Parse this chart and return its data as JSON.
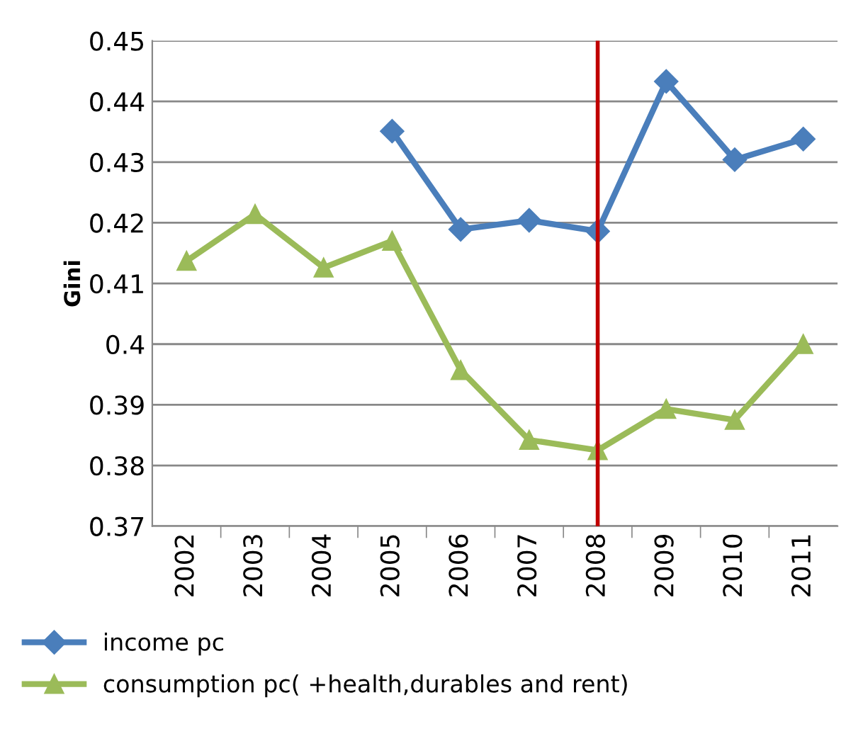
{
  "chart_data": {
    "type": "line",
    "ylabel": "Gini",
    "categories": [
      "2002",
      "2003",
      "2004",
      "2005",
      "2006",
      "2007",
      "2008",
      "2009",
      "2010",
      "2011"
    ],
    "series": [
      {
        "name": "income pc",
        "color": "#4a7ebb",
        "marker": "diamond",
        "values": [
          null,
          null,
          null,
          0.4351,
          0.4189,
          0.4204,
          0.4186,
          0.4433,
          0.4304,
          0.4338
        ]
      },
      {
        "name": "consumption pc( +health,durables and rent)",
        "color": "#9bbb59",
        "marker": "triangle",
        "values": [
          0.4137,
          0.4214,
          0.4126,
          0.417,
          0.3957,
          0.3842,
          0.3825,
          0.3893,
          0.3875,
          0.4
        ]
      }
    ],
    "ylim": [
      0.37,
      0.45
    ],
    "yticks": [
      0.37,
      0.38,
      0.39,
      0.4,
      0.41,
      0.42,
      0.43,
      0.44,
      0.45
    ],
    "ref_lines": [
      {
        "axis": "x",
        "value": "2008",
        "color": "#c00000"
      }
    ],
    "grid": "y",
    "legend": "bottom"
  }
}
